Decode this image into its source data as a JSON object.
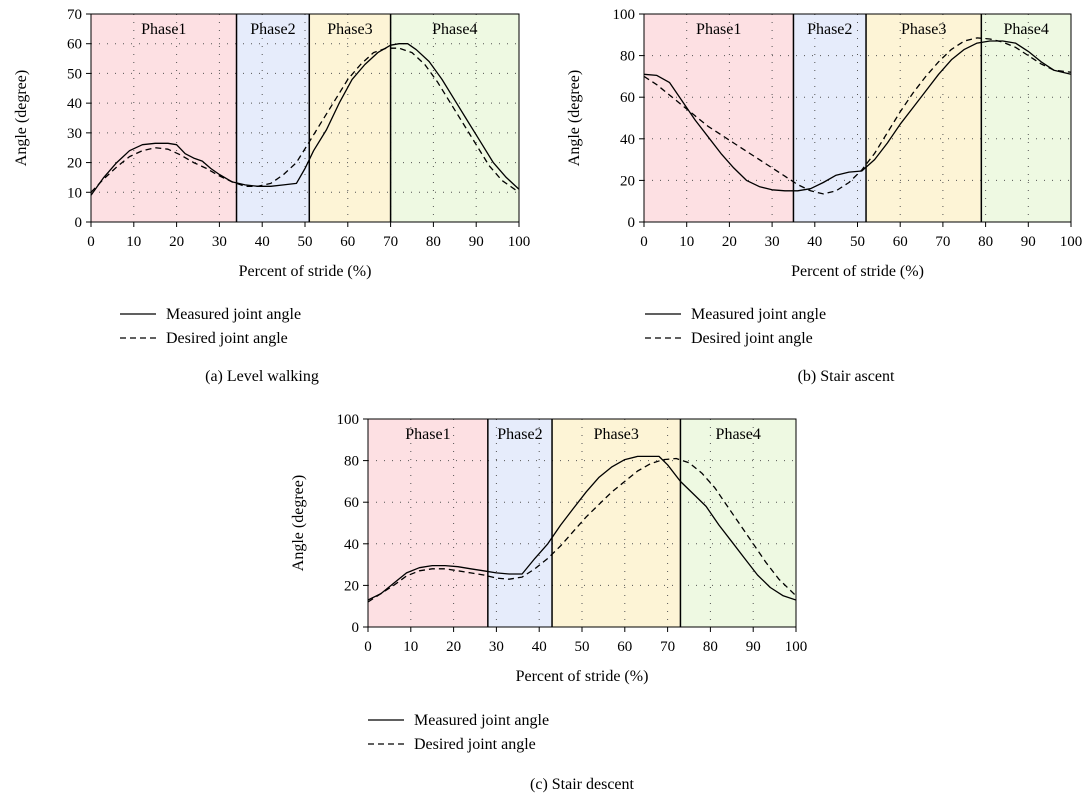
{
  "chart_data": [
    {
      "type": "line",
      "caption": "(a) Level walking",
      "xlabel": "Percent of stride (%)",
      "ylabel": "Angle (degree)",
      "xlim": [
        0,
        100
      ],
      "ylim": [
        0,
        70
      ],
      "xticks": [
        0,
        10,
        20,
        30,
        40,
        50,
        60,
        70,
        80,
        90,
        100
      ],
      "yticks": [
        0,
        10,
        20,
        30,
        40,
        50,
        60,
        70
      ],
      "grid": "dotted",
      "phases": [
        {
          "label": "Phase1",
          "start": 0,
          "end": 34,
          "color": "#fde0e3"
        },
        {
          "label": "Phase2",
          "start": 34,
          "end": 51,
          "color": "#e6ecfb"
        },
        {
          "label": "Phase3",
          "start": 51,
          "end": 70,
          "color": "#fdf4d6"
        },
        {
          "label": "Phase4",
          "start": 70,
          "end": 100,
          "color": "#eef9e2"
        }
      ],
      "series": [
        {
          "name": "Measured joint angle",
          "style": "solid",
          "x": [
            0,
            3,
            6,
            9,
            12,
            15,
            18,
            20,
            22,
            24,
            26,
            28,
            30,
            33,
            36,
            39,
            42,
            45,
            48,
            50,
            52,
            55,
            58,
            61,
            64,
            67,
            70,
            72,
            74,
            76,
            79,
            82,
            85,
            88,
            91,
            94,
            97,
            100
          ],
          "values": [
            9,
            15,
            20,
            24,
            26,
            26.5,
            26.5,
            26,
            23,
            21.5,
            20.5,
            18,
            16,
            13.5,
            12.5,
            12,
            12,
            12.5,
            13,
            18,
            24,
            31,
            40,
            48,
            53,
            57,
            59.5,
            60,
            60,
            58,
            54,
            48,
            41,
            34,
            27,
            20,
            15,
            11
          ]
        },
        {
          "name": "Desired joint angle",
          "style": "dashed",
          "x": [
            0,
            3,
            6,
            9,
            12,
            15,
            18,
            21,
            24,
            27,
            30,
            33,
            36,
            39,
            42,
            45,
            48,
            51,
            54,
            57,
            60,
            63,
            66,
            69,
            72,
            75,
            78,
            81,
            84,
            87,
            90,
            93,
            96,
            100
          ],
          "values": [
            10,
            14.5,
            18.5,
            22,
            24,
            25,
            24.5,
            22.5,
            20,
            18,
            15.5,
            13.5,
            12,
            12,
            13,
            16,
            20,
            27,
            34,
            41,
            48,
            53,
            57,
            58.5,
            58.5,
            57,
            53,
            47,
            40,
            33,
            26,
            19,
            14,
            10
          ]
        }
      ]
    },
    {
      "type": "line",
      "caption": "(b) Stair ascent",
      "xlabel": "Percent of stride (%)",
      "ylabel": "Angle (degree)",
      "xlim": [
        0,
        100
      ],
      "ylim": [
        0,
        100
      ],
      "xticks": [
        0,
        10,
        20,
        30,
        40,
        50,
        60,
        70,
        80,
        90,
        100
      ],
      "yticks": [
        0,
        20,
        40,
        60,
        80,
        100
      ],
      "grid": "dotted",
      "phases": [
        {
          "label": "Phase1",
          "start": 0,
          "end": 35,
          "color": "#fde0e3"
        },
        {
          "label": "Phase2",
          "start": 35,
          "end": 52,
          "color": "#e6ecfb"
        },
        {
          "label": "Phase3",
          "start": 52,
          "end": 79,
          "color": "#fdf4d6"
        },
        {
          "label": "Phase4",
          "start": 79,
          "end": 100,
          "color": "#eef9e2"
        }
      ],
      "series": [
        {
          "name": "Measured joint angle",
          "style": "solid",
          "x": [
            0,
            3,
            6,
            9,
            12,
            15,
            18,
            21,
            24,
            27,
            30,
            33,
            36,
            39,
            42,
            45,
            48,
            51,
            54,
            57,
            60,
            63,
            66,
            69,
            72,
            75,
            78,
            81,
            84,
            87,
            90,
            93,
            96,
            100
          ],
          "values": [
            71,
            70.5,
            67,
            58,
            49,
            41,
            33,
            26,
            20,
            17,
            15.5,
            15,
            15,
            16,
            19,
            22.5,
            24,
            24.5,
            30,
            38,
            47,
            55,
            63,
            71,
            78,
            83,
            86,
            87,
            87,
            86,
            82,
            77,
            73,
            71
          ]
        },
        {
          "name": "Desired joint angle",
          "style": "dashed",
          "x": [
            0,
            3,
            6,
            9,
            12,
            15,
            18,
            21,
            24,
            27,
            30,
            33,
            36,
            39,
            42,
            45,
            48,
            51,
            54,
            57,
            60,
            63,
            66,
            69,
            72,
            75,
            78,
            81,
            84,
            87,
            90,
            93,
            96,
            100
          ],
          "values": [
            70,
            66,
            61,
            56,
            51,
            46,
            42,
            38,
            34,
            30,
            26,
            22,
            18,
            15,
            13.5,
            15,
            19,
            25,
            33,
            43,
            53,
            62,
            70,
            77,
            83,
            87,
            88.5,
            88,
            86.5,
            84,
            80,
            76,
            73,
            72
          ]
        }
      ]
    },
    {
      "type": "line",
      "caption": "(c) Stair descent",
      "xlabel": "Percent of stride (%)",
      "ylabel": "Angle (degree)",
      "xlim": [
        0,
        100
      ],
      "ylim": [
        0,
        100
      ],
      "xticks": [
        0,
        10,
        20,
        30,
        40,
        50,
        60,
        70,
        80,
        90,
        100
      ],
      "yticks": [
        0,
        20,
        40,
        60,
        80,
        100
      ],
      "grid": "dotted",
      "phases": [
        {
          "label": "Phase1",
          "start": 0,
          "end": 28,
          "color": "#fde0e3"
        },
        {
          "label": "Phase2",
          "start": 28,
          "end": 43,
          "color": "#e6ecfb"
        },
        {
          "label": "Phase3",
          "start": 43,
          "end": 73,
          "color": "#fdf4d6"
        },
        {
          "label": "Phase4",
          "start": 73,
          "end": 100,
          "color": "#eef9e2"
        }
      ],
      "series": [
        {
          "name": "Measured joint angle",
          "style": "solid",
          "x": [
            0,
            3,
            6,
            9,
            12,
            15,
            18,
            21,
            24,
            27,
            30,
            33,
            36,
            39,
            42,
            45,
            48,
            51,
            54,
            57,
            60,
            63,
            66,
            68,
            70,
            73,
            76,
            79,
            82,
            85,
            88,
            91,
            94,
            97,
            100
          ],
          "values": [
            13,
            16,
            21,
            26,
            28.5,
            29.5,
            29.5,
            29,
            28,
            27,
            26,
            25.5,
            25.5,
            33,
            40,
            49,
            57,
            65,
            72,
            77,
            80.5,
            82,
            82,
            82,
            78,
            70,
            64,
            58,
            49,
            41,
            33,
            25,
            19,
            15,
            13
          ]
        },
        {
          "name": "Desired joint angle",
          "style": "dashed",
          "x": [
            0,
            3,
            6,
            9,
            12,
            15,
            18,
            21,
            24,
            27,
            30,
            33,
            36,
            39,
            42,
            45,
            48,
            51,
            54,
            57,
            60,
            63,
            66,
            69,
            72,
            75,
            78,
            81,
            84,
            87,
            90,
            93,
            96,
            100
          ],
          "values": [
            12,
            16,
            20,
            24.5,
            27,
            28,
            28,
            27,
            26,
            25,
            23.5,
            23,
            24,
            28,
            33,
            39,
            46,
            53,
            59,
            65,
            70,
            75,
            78.5,
            80.5,
            81,
            79,
            74,
            67,
            58,
            49,
            40,
            31,
            23,
            15
          ]
        }
      ]
    }
  ]
}
